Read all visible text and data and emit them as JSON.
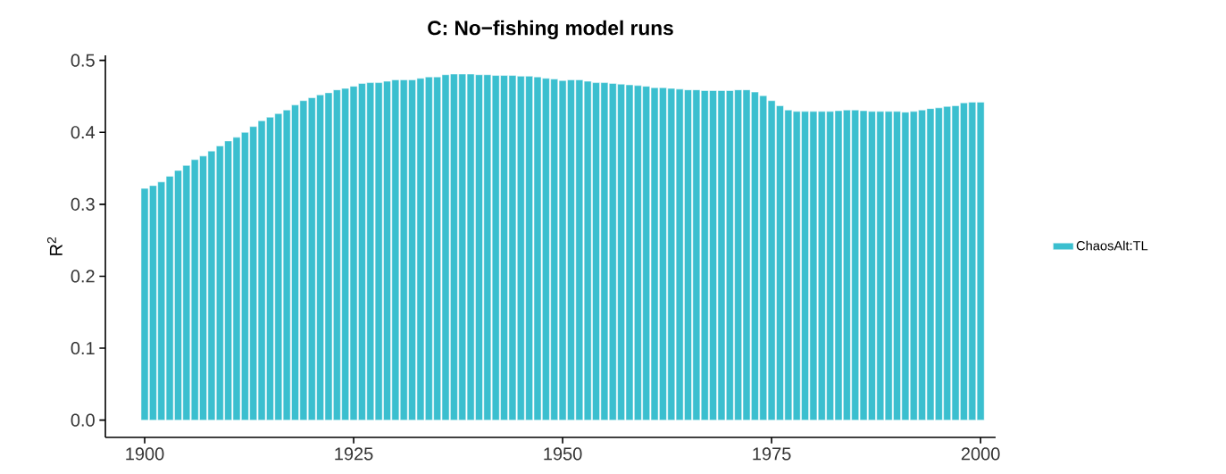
{
  "chart_data": {
    "type": "bar",
    "title": "C: No−fishing model runs",
    "ylabel": "R$^{2}$",
    "x": [
      1900,
      1901,
      1902,
      1903,
      1904,
      1905,
      1906,
      1907,
      1908,
      1909,
      1910,
      1911,
      1912,
      1913,
      1914,
      1915,
      1916,
      1917,
      1918,
      1919,
      1920,
      1921,
      1922,
      1923,
      1924,
      1925,
      1926,
      1927,
      1928,
      1929,
      1930,
      1931,
      1932,
      1933,
      1934,
      1935,
      1936,
      1937,
      1938,
      1939,
      1940,
      1941,
      1942,
      1943,
      1944,
      1945,
      1946,
      1947,
      1948,
      1949,
      1950,
      1951,
      1952,
      1953,
      1954,
      1955,
      1956,
      1957,
      1958,
      1959,
      1960,
      1961,
      1962,
      1963,
      1964,
      1965,
      1966,
      1967,
      1968,
      1969,
      1970,
      1971,
      1972,
      1973,
      1974,
      1975,
      1976,
      1977,
      1978,
      1979,
      1980,
      1981,
      1982,
      1983,
      1984,
      1985,
      1986,
      1987,
      1988,
      1989,
      1990,
      1991,
      1992,
      1993,
      1994,
      1995,
      1996,
      1997,
      1998,
      1999,
      2000
    ],
    "series": [
      {
        "name": "ChaosAlt:TL",
        "color": "#3bbfcf",
        "values": [
          0.322,
          0.326,
          0.331,
          0.339,
          0.347,
          0.354,
          0.362,
          0.367,
          0.374,
          0.381,
          0.388,
          0.393,
          0.4,
          0.408,
          0.416,
          0.421,
          0.426,
          0.431,
          0.438,
          0.444,
          0.448,
          0.452,
          0.455,
          0.459,
          0.461,
          0.464,
          0.468,
          0.469,
          0.469,
          0.471,
          0.473,
          0.473,
          0.473,
          0.475,
          0.477,
          0.477,
          0.48,
          0.481,
          0.481,
          0.481,
          0.48,
          0.48,
          0.479,
          0.479,
          0.479,
          0.478,
          0.478,
          0.477,
          0.475,
          0.474,
          0.472,
          0.473,
          0.473,
          0.471,
          0.469,
          0.469,
          0.468,
          0.467,
          0.466,
          0.465,
          0.464,
          0.462,
          0.462,
          0.461,
          0.46,
          0.459,
          0.459,
          0.458,
          0.458,
          0.458,
          0.458,
          0.459,
          0.459,
          0.456,
          0.451,
          0.444,
          0.437,
          0.431,
          0.429,
          0.429,
          0.429,
          0.429,
          0.429,
          0.43,
          0.431,
          0.431,
          0.43,
          0.429,
          0.429,
          0.429,
          0.429,
          0.428,
          0.429,
          0.431,
          0.433,
          0.434,
          0.436,
          0.437,
          0.441,
          0.442,
          0.442
        ]
      }
    ],
    "xlim": [
      1895.3,
      2001.8
    ],
    "ylim": [
      -0.024,
      0.507
    ],
    "xticks": [
      1900,
      1925,
      1950,
      1975,
      2000
    ],
    "yticks": [
      {
        "value": 0,
        "label": "0.0"
      },
      {
        "value": 0.1,
        "label": "0.1"
      },
      {
        "value": 0.2,
        "label": "0.2"
      },
      {
        "value": 0.3,
        "label": "0.3"
      },
      {
        "value": 0.4,
        "label": "0.4"
      },
      {
        "value": 0.5,
        "label": "0.5"
      }
    ],
    "legend": "right"
  }
}
